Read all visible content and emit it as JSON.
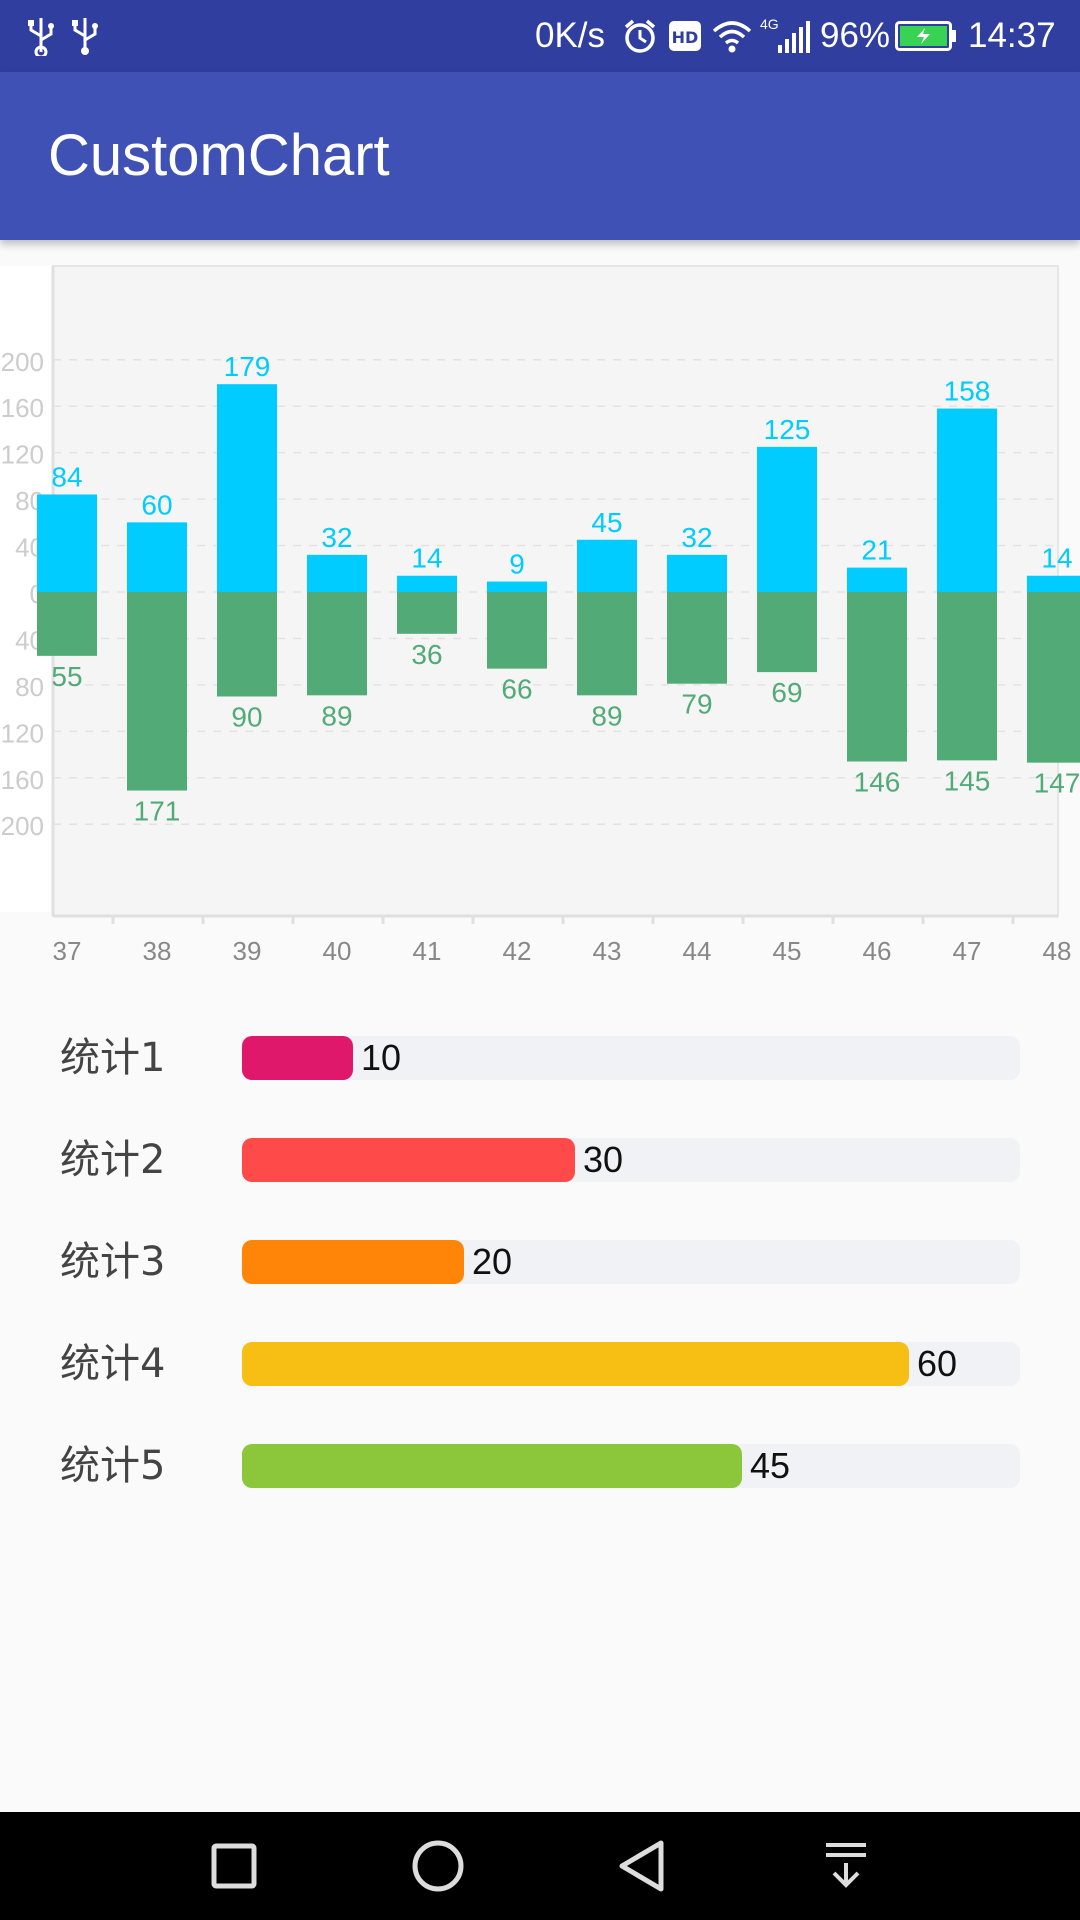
{
  "status_bar": {
    "speed": "0K/s",
    "network": "4G",
    "battery": "96%",
    "time": "14:37",
    "icons": [
      "usb-icon",
      "usb-icon",
      "alarm-icon",
      "hd-icon",
      "wifi-icon",
      "signal-icon",
      "battery-charging-icon"
    ]
  },
  "app_bar": {
    "title": "CustomChart"
  },
  "chart_data": {
    "type": "bar",
    "categories": [
      "37",
      "38",
      "39",
      "40",
      "41",
      "42",
      "43",
      "44",
      "45",
      "46",
      "47",
      "48"
    ],
    "series": [
      {
        "values": [
          84,
          60,
          179,
          32,
          14,
          9,
          45,
          32,
          125,
          21,
          158,
          14
        ],
        "color": "#00ccff",
        "direction": "up"
      },
      {
        "values": [
          55,
          171,
          90,
          89,
          36,
          66,
          89,
          79,
          69,
          146,
          145,
          147
        ],
        "color": "#52ab76",
        "direction": "down"
      }
    ],
    "y_tick_labels": [
      "200",
      "160",
      "120",
      "80",
      "40",
      "0",
      "40",
      "80",
      "120",
      "160",
      "200"
    ],
    "ylim": [
      -200,
      200
    ],
    "grid": true
  },
  "stats": {
    "max": 70,
    "items": [
      {
        "label": "统计1",
        "value": 10,
        "value_text": "10",
        "color": "#e0186c"
      },
      {
        "label": "统计2",
        "value": 30,
        "value_text": "30",
        "color": "#ff4a4a"
      },
      {
        "label": "统计3",
        "value": 20,
        "value_text": "20",
        "color": "#ff8508"
      },
      {
        "label": "统计4",
        "value": 60,
        "value_text": "60",
        "color": "#f7bf14"
      },
      {
        "label": "统计5",
        "value": 45,
        "value_text": "45",
        "color": "#8cc63a"
      }
    ]
  },
  "nav_bar": {
    "buttons": [
      "recents-icon",
      "home-icon",
      "back-icon",
      "notification-pull-icon"
    ]
  }
}
